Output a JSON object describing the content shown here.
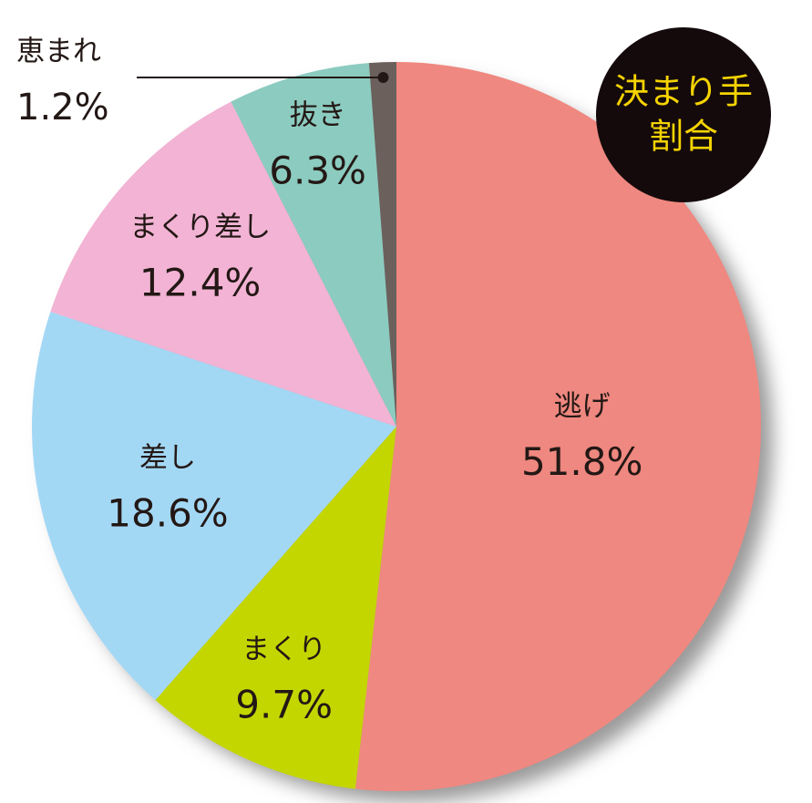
{
  "chart_data": {
    "type": "pie",
    "title": [
      "決まり手",
      "割合"
    ],
    "categories": [
      "逃げ",
      "まくり",
      "差し",
      "まくり差し",
      "抜き",
      "恵まれ"
    ],
    "values": [
      51.8,
      9.7,
      18.6,
      12.4,
      6.3,
      1.2
    ],
    "value_labels": [
      "51.8%",
      "9.7%",
      "18.6%",
      "12.4%",
      "6.3%",
      "1.2%"
    ],
    "colors": [
      "#ef8880",
      "#c4d600",
      "#a3d8f5",
      "#f2b3d4",
      "#8ccbc0",
      "#6b605c"
    ]
  }
}
